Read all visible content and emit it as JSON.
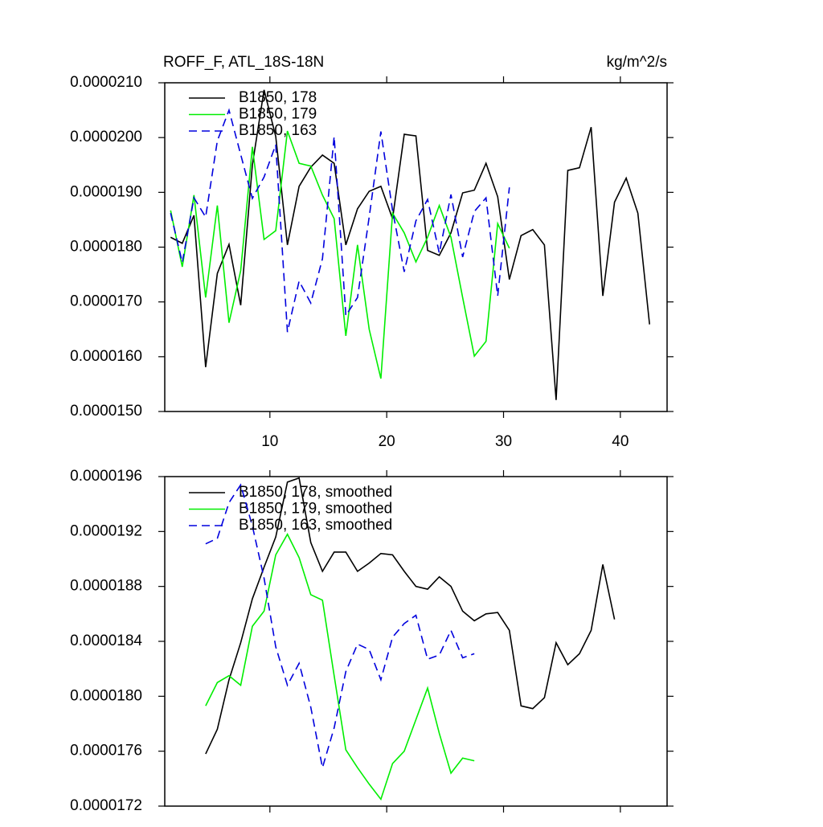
{
  "chart_data": [
    {
      "type": "line",
      "title": "ROFF_F, ATL_18S-18N",
      "units_label": "kg/m^2/s",
      "xlim": [
        1,
        44
      ],
      "xticks": [
        10,
        20,
        30,
        40
      ],
      "ylim": [
        1.5e-05,
        2.1e-05
      ],
      "yticks": [
        {
          "value": 1.5e-05,
          "label": "0.0000150"
        },
        {
          "value": 1.6e-05,
          "label": "0.0000160"
        },
        {
          "value": 1.7e-05,
          "label": "0.0000170"
        },
        {
          "value": 1.8e-05,
          "label": "0.0000180"
        },
        {
          "value": 1.9e-05,
          "label": "0.0000190"
        },
        {
          "value": 2e-05,
          "label": "0.0000200"
        },
        {
          "value": 2.1e-05,
          "label": "0.0000210"
        }
      ],
      "series": [
        {
          "name": "B1850, 178",
          "color": "#000000",
          "line_style": "solid",
          "x": [
            1.5,
            2.5,
            3.5,
            4.5,
            5.5,
            6.5,
            7.5,
            8.5,
            9.5,
            10.5,
            11.5,
            12.5,
            13.5,
            14.5,
            15.5,
            16.5,
            17.5,
            18.5,
            19.5,
            20.5,
            21.5,
            22.5,
            23.5,
            24.5,
            25.5,
            26.5,
            27.5,
            28.5,
            29.5,
            30.5,
            31.5,
            32.5,
            33.5,
            34.5,
            35.5,
            36.5,
            37.5,
            38.5,
            39.5,
            40.5,
            41.5,
            42.5
          ],
          "values": [
            1.818e-05,
            1.807e-05,
            1.858e-05,
            1.581e-05,
            1.752e-05,
            1.805e-05,
            1.694e-05,
            1.95e-05,
            2.087e-05,
            2.002e-05,
            1.804e-05,
            1.911e-05,
            1.946e-05,
            1.968e-05,
            1.953e-05,
            1.804e-05,
            1.87e-05,
            1.902e-05,
            1.911e-05,
            1.852e-05,
            2.006e-05,
            2.003e-05,
            1.794e-05,
            1.785e-05,
            1.826e-05,
            1.899e-05,
            1.904e-05,
            1.953e-05,
            1.892e-05,
            1.741e-05,
            1.821e-05,
            1.832e-05,
            1.804e-05,
            1.521e-05,
            1.94e-05,
            1.945e-05,
            2.019e-05,
            1.711e-05,
            1.882e-05,
            1.926e-05,
            1.862e-05,
            1.659e-05
          ]
        },
        {
          "name": "B1850, 179",
          "color": "#00ee00",
          "line_style": "solid",
          "x": [
            1.5,
            2.5,
            3.5,
            4.5,
            5.5,
            6.5,
            7.5,
            8.5,
            9.5,
            10.5,
            11.5,
            12.5,
            13.5,
            14.5,
            15.5,
            16.5,
            17.5,
            18.5,
            19.5,
            20.5,
            21.5,
            22.5,
            23.5,
            24.5,
            25.5,
            26.5,
            27.5,
            28.5,
            29.5,
            30.5
          ],
          "values": [
            1.867e-05,
            1.764e-05,
            1.895e-05,
            1.708e-05,
            1.876e-05,
            1.662e-05,
            1.757e-05,
            1.983e-05,
            1.814e-05,
            1.83e-05,
            2.012e-05,
            1.953e-05,
            1.948e-05,
            1.895e-05,
            1.852e-05,
            1.638e-05,
            1.804e-05,
            1.65e-05,
            1.56e-05,
            1.862e-05,
            1.826e-05,
            1.773e-05,
            1.818e-05,
            1.876e-05,
            1.818e-05,
            1.708e-05,
            1.601e-05,
            1.628e-05,
            1.843e-05,
            1.798e-05
          ]
        },
        {
          "name": "B1850, 163",
          "color": "#0000dd",
          "line_style": "dashed",
          "x": [
            1.5,
            2.5,
            3.5,
            4.5,
            5.5,
            6.5,
            7.5,
            8.5,
            9.5,
            10.5,
            11.5,
            12.5,
            13.5,
            14.5,
            15.5,
            16.5,
            17.5,
            18.5,
            19.5,
            20.5,
            21.5,
            22.5,
            23.5,
            24.5,
            25.5,
            26.5,
            27.5,
            28.5,
            29.5,
            30.5
          ],
          "values": [
            1.862e-05,
            1.772e-05,
            1.89e-05,
            1.855e-05,
            1.994e-05,
            2.05e-05,
            1.969e-05,
            1.889e-05,
            1.928e-05,
            1.987e-05,
            1.645e-05,
            1.738e-05,
            1.698e-05,
            1.779e-05,
            2.002e-05,
            1.675e-05,
            1.708e-05,
            1.855e-05,
            2.011e-05,
            1.867e-05,
            1.755e-05,
            1.848e-05,
            1.887e-05,
            1.789e-05,
            1.896e-05,
            1.782e-05,
            1.865e-05,
            1.89e-05,
            1.711e-05,
            1.909e-05
          ]
        }
      ]
    },
    {
      "type": "line",
      "xlim": [
        1,
        44
      ],
      "xticks": [
        10,
        20,
        30,
        40
      ],
      "ylim": [
        1.72e-05,
        1.96e-05
      ],
      "yticks": [
        {
          "value": 1.72e-05,
          "label": "0.0000172"
        },
        {
          "value": 1.76e-05,
          "label": "0.0000176"
        },
        {
          "value": 1.8e-05,
          "label": "0.0000180"
        },
        {
          "value": 1.84e-05,
          "label": "0.0000184"
        },
        {
          "value": 1.88e-05,
          "label": "0.0000188"
        },
        {
          "value": 1.92e-05,
          "label": "0.0000192"
        },
        {
          "value": 1.96e-05,
          "label": "0.0000196"
        }
      ],
      "series": [
        {
          "name": "B1850, 178, smoothed",
          "color": "#000000",
          "line_style": "solid",
          "x": [
            4.5,
            5.5,
            6.5,
            7.5,
            8.5,
            9.5,
            10.5,
            11.5,
            12.5,
            13.5,
            14.5,
            15.5,
            16.5,
            17.5,
            18.5,
            19.5,
            20.5,
            21.5,
            22.5,
            23.5,
            24.5,
            25.5,
            26.5,
            27.5,
            28.5,
            29.5,
            30.5,
            31.5,
            32.5,
            33.5,
            34.5,
            35.5,
            36.5,
            37.5,
            38.5,
            39.5
          ],
          "values": [
            1.758e-05,
            1.776e-05,
            1.812e-05,
            1.839e-05,
            1.871e-05,
            1.894e-05,
            1.916e-05,
            1.956e-05,
            1.959e-05,
            1.912e-05,
            1.891e-05,
            1.905e-05,
            1.905e-05,
            1.891e-05,
            1.897e-05,
            1.904e-05,
            1.903e-05,
            1.891e-05,
            1.88e-05,
            1.878e-05,
            1.887e-05,
            1.88e-05,
            1.862e-05,
            1.855e-05,
            1.86e-05,
            1.861e-05,
            1.848e-05,
            1.793e-05,
            1.791e-05,
            1.799e-05,
            1.839e-05,
            1.823e-05,
            1.831e-05,
            1.848e-05,
            1.896e-05,
            1.856e-05
          ]
        },
        {
          "name": "B1850, 179, smoothed",
          "color": "#00ee00",
          "line_style": "solid",
          "x": [
            4.5,
            5.5,
            6.5,
            7.5,
            8.5,
            9.5,
            10.5,
            11.5,
            12.5,
            13.5,
            14.5,
            15.5,
            16.5,
            17.5,
            18.5,
            19.5,
            20.5,
            21.5,
            22.5,
            23.5,
            24.5,
            25.5,
            26.5,
            27.5
          ],
          "values": [
            1.793e-05,
            1.81e-05,
            1.815e-05,
            1.808e-05,
            1.851e-05,
            1.862e-05,
            1.903e-05,
            1.918e-05,
            1.901e-05,
            1.874e-05,
            1.87e-05,
            1.815e-05,
            1.761e-05,
            1.748e-05,
            1.736e-05,
            1.725e-05,
            1.751e-05,
            1.76e-05,
            1.783e-05,
            1.806e-05,
            1.773e-05,
            1.744e-05,
            1.755e-05,
            1.753e-05
          ]
        },
        {
          "name": "B1850, 163, smoothed",
          "color": "#0000dd",
          "line_style": "dashed",
          "x": [
            4.5,
            5.5,
            6.5,
            7.5,
            8.5,
            9.5,
            10.5,
            11.5,
            12.5,
            13.5,
            14.5,
            15.5,
            16.5,
            17.5,
            18.5,
            19.5,
            20.5,
            21.5,
            22.5,
            23.5,
            24.5,
            25.5,
            26.5,
            27.5
          ],
          "values": [
            1.911e-05,
            1.915e-05,
            1.941e-05,
            1.954e-05,
            1.924e-05,
            1.886e-05,
            1.836e-05,
            1.808e-05,
            1.824e-05,
            1.792e-05,
            1.748e-05,
            1.777e-05,
            1.818e-05,
            1.838e-05,
            1.834e-05,
            1.812e-05,
            1.843e-05,
            1.853e-05,
            1.859e-05,
            1.827e-05,
            1.83e-05,
            1.848e-05,
            1.828e-05,
            1.831e-05
          ]
        }
      ]
    }
  ]
}
